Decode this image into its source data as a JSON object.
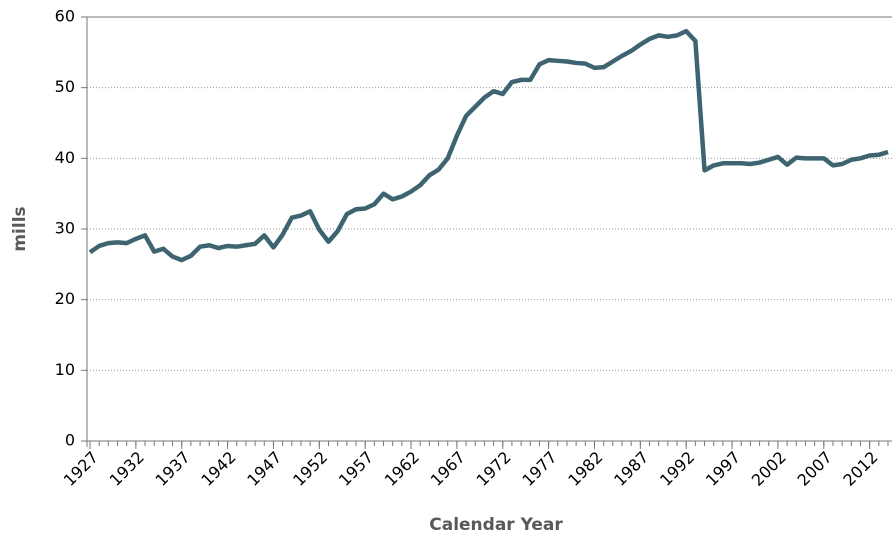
{
  "chart_data": {
    "type": "line",
    "x_label": "Calendar Year",
    "y_label": "mills",
    "x": [
      1927,
      1928,
      1929,
      1930,
      1931,
      1932,
      1933,
      1934,
      1935,
      1936,
      1937,
      1938,
      1939,
      1940,
      1941,
      1942,
      1943,
      1944,
      1945,
      1946,
      1947,
      1948,
      1949,
      1950,
      1951,
      1952,
      1953,
      1954,
      1955,
      1956,
      1957,
      1958,
      1959,
      1960,
      1961,
      1962,
      1963,
      1964,
      1965,
      1966,
      1967,
      1968,
      1969,
      1970,
      1971,
      1972,
      1973,
      1974,
      1975,
      1976,
      1977,
      1978,
      1979,
      1980,
      1981,
      1982,
      1983,
      1984,
      1985,
      1986,
      1987,
      1988,
      1989,
      1990,
      1991,
      1992,
      1993,
      1994,
      1995,
      1996,
      1997,
      1998,
      1999,
      2000,
      2001,
      2002,
      2003,
      2004,
      2005,
      2006,
      2007,
      2008,
      2009,
      2010,
      2011,
      2012,
      2013,
      2014
    ],
    "series": [
      {
        "color": "#3d6470",
        "values": [
          26.7,
          27.6,
          28.0,
          28.1,
          28.0,
          28.6,
          29.1,
          26.8,
          27.2,
          26.1,
          25.6,
          26.2,
          27.5,
          27.7,
          27.3,
          27.6,
          27.5,
          27.7,
          27.9,
          29.1,
          27.4,
          29.2,
          31.6,
          31.9,
          32.5,
          29.9,
          28.2,
          29.7,
          32.1,
          32.8,
          32.9,
          33.5,
          35.0,
          34.2,
          34.6,
          35.3,
          36.2,
          37.6,
          38.4,
          40.0,
          43.2,
          46.0,
          47.3,
          48.6,
          49.5,
          49.1,
          50.8,
          51.1,
          51.1,
          53.3,
          53.9,
          53.8,
          53.7,
          53.5,
          53.4,
          52.8,
          52.9,
          53.7,
          54.5,
          55.2,
          56.1,
          56.9,
          57.4,
          57.2,
          57.4,
          58.0,
          56.6,
          38.3,
          39.0,
          39.3,
          39.3,
          39.3,
          39.2,
          39.4,
          39.8,
          40.2,
          39.1,
          40.1,
          40.0,
          40.0,
          40.0,
          39.0,
          39.2,
          39.8,
          40.0,
          40.4,
          40.5,
          40.9
        ]
      }
    ],
    "xlim": [
      1927,
      2014
    ],
    "xticks": [
      1927,
      1932,
      1937,
      1942,
      1947,
      1952,
      1957,
      1962,
      1967,
      1972,
      1977,
      1982,
      1987,
      1992,
      1997,
      2002,
      2007,
      2012
    ],
    "ylim": [
      0,
      60
    ],
    "yticks": [
      0,
      10,
      20,
      30,
      40,
      50,
      60
    ],
    "grid": true
  }
}
